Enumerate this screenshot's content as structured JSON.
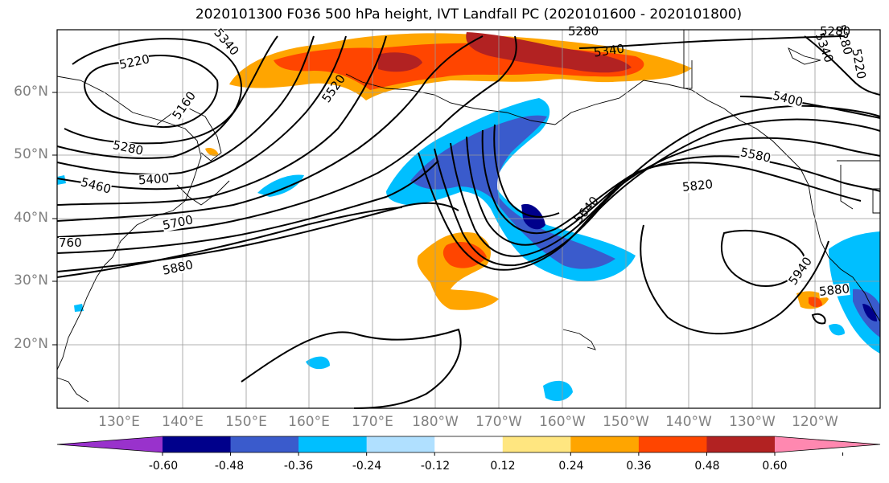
{
  "title": "2020101300 F036 500 hPa height, IVT Landfall PC (2020101600 - 2020101800)",
  "lat_labels": [
    "60°N",
    "50°N",
    "40°N",
    "30°N",
    "20°N"
  ],
  "lon_labels": [
    "130°E",
    "140°E",
    "150°E",
    "160°E",
    "170°E",
    "180°W",
    "170°W",
    "160°W",
    "150°W",
    "140°W",
    "130°W",
    "120°W"
  ],
  "contour_labels": [
    "5340",
    "5280",
    "5340",
    "5280",
    "5220",
    "5160",
    "5220",
    "5280",
    "5400",
    "5460",
    "5520",
    "5700",
    "5880",
    "5400",
    "5580",
    "5820",
    "5640",
    "5940",
    "5880",
    "760",
    "5280",
    "5340"
  ],
  "colorbar": {
    "ticks": [
      "-0.60",
      "-0.48",
      "-0.36",
      "-0.24",
      "-0.12",
      "0.12",
      "0.24",
      "0.36",
      "0.48",
      "0.60"
    ],
    "colors": [
      "#9932cc",
      "#00008b",
      "#3a5bcc",
      "#00bfff",
      "#b0e0ff",
      "#ffffff",
      "#ffe680",
      "#ffa500",
      "#ff4500",
      "#b22222",
      "#ff88b0"
    ]
  }
}
